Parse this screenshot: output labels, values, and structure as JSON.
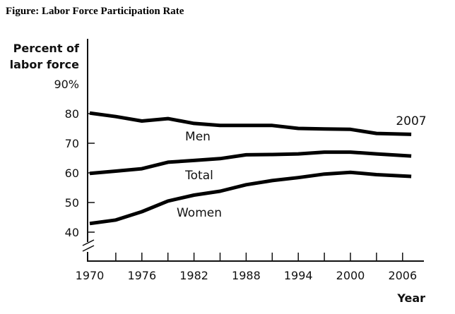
{
  "figure_title": "Figure: Labor Force Participation Rate",
  "chart_data": {
    "type": "line",
    "title": "Labor Force Participation Rate",
    "ylabel": [
      "Percent of",
      "labor force"
    ],
    "xlabel": "Year",
    "ylim": [
      40,
      90
    ],
    "xlim": [
      1970,
      2007
    ],
    "y_ticks": [
      "40",
      "50",
      "60",
      "70",
      "80",
      "90%"
    ],
    "x_tick_labels": [
      "1970",
      "1976",
      "1982",
      "1988",
      "1994",
      "2000",
      "2006"
    ],
    "grid": false,
    "axis_break": true,
    "end_annotation": "2007",
    "x": [
      1970,
      1973,
      1976,
      1979,
      1982,
      1985,
      1988,
      1991,
      1994,
      1997,
      2000,
      2003,
      2007
    ],
    "series": [
      {
        "name": "Men",
        "values": [
          80.2,
          79.0,
          77.5,
          78.3,
          76.7,
          76.0,
          76.0,
          76.0,
          75.0,
          74.8,
          74.7,
          73.3,
          73.0
        ]
      },
      {
        "name": "Total",
        "values": [
          59.8,
          60.6,
          61.4,
          63.6,
          64.2,
          64.8,
          66.1,
          66.2,
          66.4,
          67.0,
          67.0,
          66.4,
          65.7
        ]
      },
      {
        "name": "Women",
        "values": [
          42.9,
          44.1,
          46.9,
          50.5,
          52.5,
          53.8,
          56.0,
          57.4,
          58.4,
          59.6,
          60.2,
          59.4,
          58.8
        ]
      }
    ]
  }
}
